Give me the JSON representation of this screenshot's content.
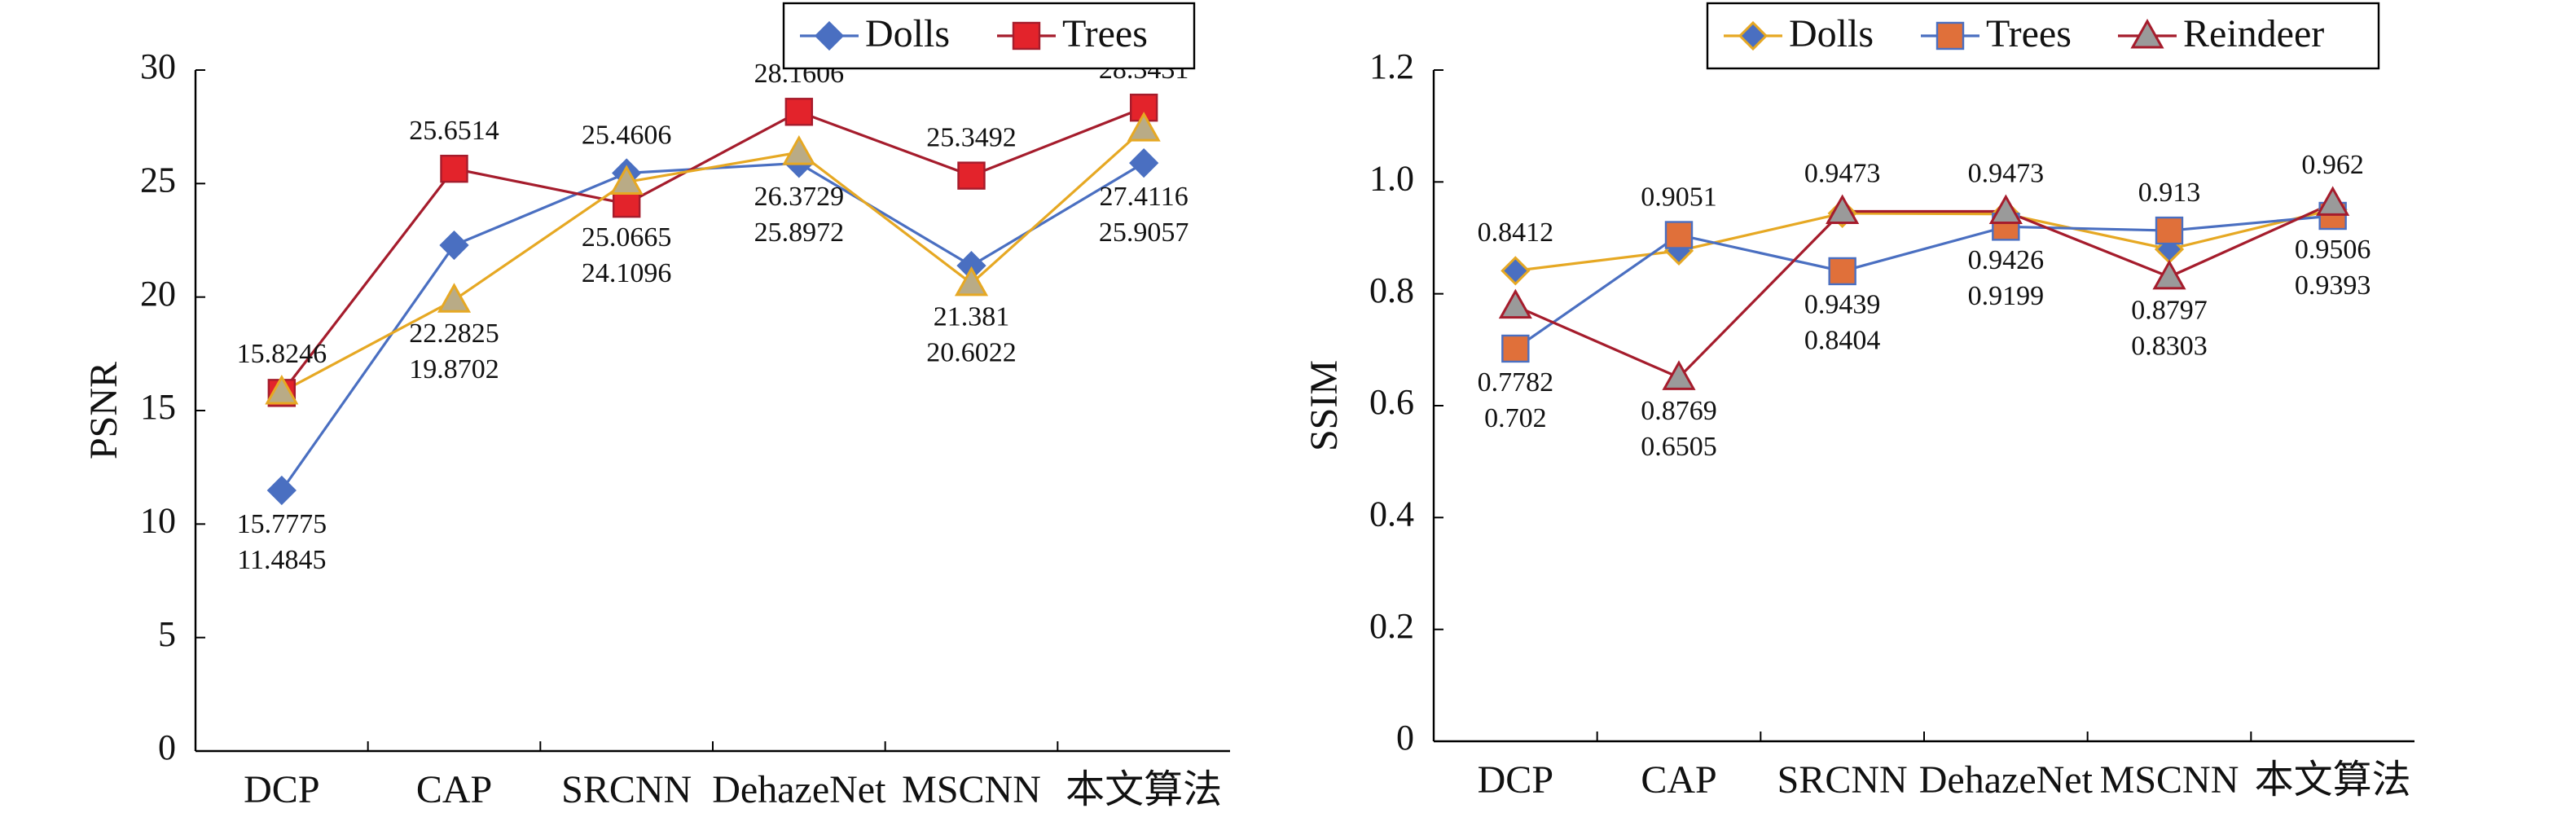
{
  "chart_data": [
    {
      "type": "line",
      "y_label": "PSNR",
      "categories": [
        "DCP",
        "CAP",
        "SRCNN",
        "DehazeNet",
        "MSCNN",
        "本文算法"
      ],
      "ylim": [
        0,
        30
      ],
      "yticks": [
        0,
        5,
        10,
        15,
        20,
        25,
        30
      ],
      "legend": "top-right",
      "series": [
        {
          "name": "Dolls",
          "color": "#4a6fc1",
          "marker": "diamond",
          "marker_color": "#4a6fc1",
          "values": [
            11.4845,
            22.2825,
            25.4606,
            25.8972,
            21.381,
            25.9057
          ]
        },
        {
          "name": "Trees",
          "color": "#a51c2c",
          "marker": "square",
          "marker_color": "#e3232b",
          "values": [
            15.7775,
            25.6514,
            24.1096,
            28.1606,
            25.3492,
            28.3431
          ]
        },
        {
          "color": "#e6a823",
          "marker": "triangle",
          "marker_color": "#b9ab86",
          "values": [
            15.8246,
            19.8702,
            25.0665,
            26.3729,
            20.6022,
            27.4116
          ]
        }
      ]
    },
    {
      "type": "line",
      "y_label": "SSIM",
      "categories": [
        "DCP",
        "CAP",
        "SRCNN",
        "DehazeNet",
        "MSCNN",
        "本文算法"
      ],
      "ylim": [
        0,
        1.2
      ],
      "yticks": [
        0,
        0.2,
        0.4,
        0.6,
        0.8,
        {
          "value": 1,
          "label": "1.0"
        },
        1.2
      ],
      "legend": "top-right",
      "series": [
        {
          "name": "Dolls",
          "color": "#e6a823",
          "marker": "diamond",
          "marker_color": "#4a6fc1",
          "values": [
            0.8412,
            0.8769,
            0.9439,
            0.9426,
            0.8797,
            0.9506
          ]
        },
        {
          "name": "Trees",
          "color": "#4a6fc1",
          "marker": "square",
          "marker_color": "#e0703a",
          "values": [
            0.702,
            0.9051,
            0.8404,
            0.9199,
            0.913,
            0.9393
          ]
        },
        {
          "name": "Reindeer",
          "color": "#a51c2c",
          "marker": "triangle",
          "marker_color": "#9a9a9a",
          "values": [
            0.7782,
            0.6505,
            0.9473,
            0.9473,
            0.8303,
            0.962
          ]
        }
      ]
    }
  ]
}
